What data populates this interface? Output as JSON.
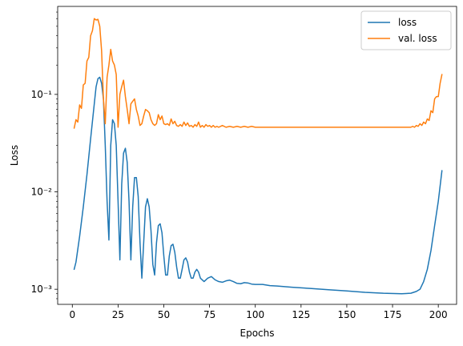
{
  "chart_data": {
    "type": "line",
    "title": "",
    "xlabel": "Epochs",
    "ylabel": "Loss",
    "xlim": [
      -8,
      210
    ],
    "ylim": [
      0.0007,
      0.8
    ],
    "yscale": "log",
    "x_ticks": [
      0,
      25,
      50,
      75,
      100,
      125,
      150,
      175,
      200
    ],
    "x_tick_labels": [
      "0",
      "25",
      "50",
      "75",
      "100",
      "125",
      "150",
      "175",
      "200"
    ],
    "y_ticks": [
      0.001,
      0.01,
      0.1
    ],
    "y_tick_labels": [
      "10⁻³",
      "10⁻²",
      "10⁻¹"
    ],
    "grid": false,
    "legend_position": "top-right",
    "series": [
      {
        "name": "loss",
        "color": "#1f77b4",
        "points": [
          [
            1,
            0.0016
          ],
          [
            2,
            0.0019
          ],
          [
            4,
            0.0035
          ],
          [
            6,
            0.007
          ],
          [
            8,
            0.015
          ],
          [
            10,
            0.035
          ],
          [
            12,
            0.08
          ],
          [
            13,
            0.12
          ],
          [
            14,
            0.145
          ],
          [
            15,
            0.15
          ],
          [
            16,
            0.13
          ],
          [
            17,
            0.09
          ],
          [
            18,
            0.03
          ],
          [
            19,
            0.008
          ],
          [
            20,
            0.0032
          ],
          [
            21,
            0.03
          ],
          [
            22,
            0.055
          ],
          [
            23,
            0.05
          ],
          [
            24,
            0.03
          ],
          [
            25,
            0.008
          ],
          [
            26,
            0.002
          ],
          [
            27,
            0.012
          ],
          [
            28,
            0.025
          ],
          [
            29,
            0.028
          ],
          [
            30,
            0.02
          ],
          [
            31,
            0.008
          ],
          [
            32,
            0.002
          ],
          [
            33,
            0.007
          ],
          [
            34,
            0.014
          ],
          [
            35,
            0.014
          ],
          [
            36,
            0.009
          ],
          [
            37,
            0.003
          ],
          [
            38,
            0.0013
          ],
          [
            39,
            0.003
          ],
          [
            40,
            0.007
          ],
          [
            41,
            0.0085
          ],
          [
            42,
            0.007
          ],
          [
            43,
            0.004
          ],
          [
            44,
            0.0018
          ],
          [
            45,
            0.0014
          ],
          [
            46,
            0.003
          ],
          [
            47,
            0.0045
          ],
          [
            48,
            0.0047
          ],
          [
            49,
            0.0038
          ],
          [
            50,
            0.0022
          ],
          [
            51,
            0.0014
          ],
          [
            52,
            0.0014
          ],
          [
            53,
            0.0022
          ],
          [
            54,
            0.0028
          ],
          [
            55,
            0.0029
          ],
          [
            56,
            0.0024
          ],
          [
            57,
            0.0017
          ],
          [
            58,
            0.0013
          ],
          [
            59,
            0.0013
          ],
          [
            60,
            0.0016
          ],
          [
            61,
            0.002
          ],
          [
            62,
            0.0021
          ],
          [
            63,
            0.0019
          ],
          [
            64,
            0.0015
          ],
          [
            65,
            0.0013
          ],
          [
            66,
            0.0013
          ],
          [
            67,
            0.0015
          ],
          [
            68,
            0.0016
          ],
          [
            69,
            0.0015
          ],
          [
            70,
            0.0013
          ],
          [
            72,
            0.0012
          ],
          [
            74,
            0.0013
          ],
          [
            76,
            0.00135
          ],
          [
            78,
            0.00125
          ],
          [
            80,
            0.0012
          ],
          [
            82,
            0.00118
          ],
          [
            84,
            0.00122
          ],
          [
            86,
            0.00124
          ],
          [
            88,
            0.0012
          ],
          [
            90,
            0.00115
          ],
          [
            92,
            0.00114
          ],
          [
            94,
            0.00117
          ],
          [
            96,
            0.00116
          ],
          [
            98,
            0.00113
          ],
          [
            100,
            0.00112
          ],
          [
            104,
            0.00112
          ],
          [
            108,
            0.00109
          ],
          [
            112,
            0.00108
          ],
          [
            120,
            0.00105
          ],
          [
            130,
            0.00102
          ],
          [
            140,
            0.00099
          ],
          [
            150,
            0.00096
          ],
          [
            160,
            0.00093
          ],
          [
            170,
            0.00091
          ],
          [
            180,
            0.0009
          ],
          [
            185,
            0.00091
          ],
          [
            188,
            0.00095
          ],
          [
            190,
            0.001
          ],
          [
            192,
            0.0012
          ],
          [
            194,
            0.0016
          ],
          [
            196,
            0.0025
          ],
          [
            198,
            0.0045
          ],
          [
            200,
            0.008
          ],
          [
            202,
            0.0165
          ]
        ]
      },
      {
        "name": "val. loss",
        "color": "#ff7f0e",
        "points": [
          [
            1,
            0.045
          ],
          [
            2,
            0.055
          ],
          [
            3,
            0.052
          ],
          [
            4,
            0.078
          ],
          [
            5,
            0.072
          ],
          [
            6,
            0.125
          ],
          [
            7,
            0.13
          ],
          [
            8,
            0.22
          ],
          [
            9,
            0.24
          ],
          [
            10,
            0.4
          ],
          [
            11,
            0.45
          ],
          [
            12,
            0.6
          ],
          [
            13,
            0.58
          ],
          [
            14,
            0.59
          ],
          [
            15,
            0.5
          ],
          [
            16,
            0.28
          ],
          [
            17,
            0.09
          ],
          [
            18,
            0.05
          ],
          [
            19,
            0.15
          ],
          [
            20,
            0.2
          ],
          [
            21,
            0.29
          ],
          [
            22,
            0.22
          ],
          [
            23,
            0.2
          ],
          [
            24,
            0.16
          ],
          [
            25,
            0.046
          ],
          [
            26,
            0.1
          ],
          [
            27,
            0.12
          ],
          [
            28,
            0.14
          ],
          [
            29,
            0.095
          ],
          [
            30,
            0.07
          ],
          [
            31,
            0.05
          ],
          [
            32,
            0.08
          ],
          [
            33,
            0.085
          ],
          [
            34,
            0.09
          ],
          [
            35,
            0.07
          ],
          [
            36,
            0.06
          ],
          [
            37,
            0.048
          ],
          [
            38,
            0.05
          ],
          [
            39,
            0.06
          ],
          [
            40,
            0.07
          ],
          [
            41,
            0.068
          ],
          [
            42,
            0.065
          ],
          [
            43,
            0.055
          ],
          [
            44,
            0.05
          ],
          [
            45,
            0.048
          ],
          [
            46,
            0.05
          ],
          [
            47,
            0.062
          ],
          [
            48,
            0.055
          ],
          [
            49,
            0.06
          ],
          [
            50,
            0.05
          ],
          [
            51,
            0.049
          ],
          [
            52,
            0.05
          ],
          [
            53,
            0.048
          ],
          [
            54,
            0.056
          ],
          [
            55,
            0.05
          ],
          [
            56,
            0.053
          ],
          [
            57,
            0.048
          ],
          [
            58,
            0.047
          ],
          [
            59,
            0.049
          ],
          [
            60,
            0.047
          ],
          [
            61,
            0.052
          ],
          [
            62,
            0.048
          ],
          [
            63,
            0.051
          ],
          [
            64,
            0.047
          ],
          [
            65,
            0.048
          ],
          [
            66,
            0.046
          ],
          [
            67,
            0.049
          ],
          [
            68,
            0.047
          ],
          [
            69,
            0.052
          ],
          [
            70,
            0.046
          ],
          [
            71,
            0.048
          ],
          [
            72,
            0.046
          ],
          [
            73,
            0.049
          ],
          [
            74,
            0.047
          ],
          [
            75,
            0.048
          ],
          [
            76,
            0.046
          ],
          [
            77,
            0.048
          ],
          [
            78,
            0.046
          ],
          [
            79,
            0.047
          ],
          [
            80,
            0.046
          ],
          [
            82,
            0.048
          ],
          [
            84,
            0.046
          ],
          [
            86,
            0.047
          ],
          [
            88,
            0.046
          ],
          [
            90,
            0.047
          ],
          [
            92,
            0.046
          ],
          [
            94,
            0.047
          ],
          [
            96,
            0.046
          ],
          [
            98,
            0.047
          ],
          [
            100,
            0.046
          ],
          [
            110,
            0.046
          ],
          [
            120,
            0.046
          ],
          [
            130,
            0.046
          ],
          [
            140,
            0.046
          ],
          [
            150,
            0.046
          ],
          [
            160,
            0.046
          ],
          [
            170,
            0.046
          ],
          [
            180,
            0.046
          ],
          [
            185,
            0.046
          ],
          [
            186,
            0.047
          ],
          [
            187,
            0.046
          ],
          [
            188,
            0.048
          ],
          [
            189,
            0.047
          ],
          [
            190,
            0.05
          ],
          [
            191,
            0.048
          ],
          [
            192,
            0.052
          ],
          [
            193,
            0.05
          ],
          [
            194,
            0.056
          ],
          [
            195,
            0.054
          ],
          [
            196,
            0.068
          ],
          [
            197,
            0.065
          ],
          [
            198,
            0.09
          ],
          [
            199,
            0.095
          ],
          [
            200,
            0.095
          ],
          [
            201,
            0.13
          ],
          [
            202,
            0.16
          ]
        ]
      }
    ]
  }
}
